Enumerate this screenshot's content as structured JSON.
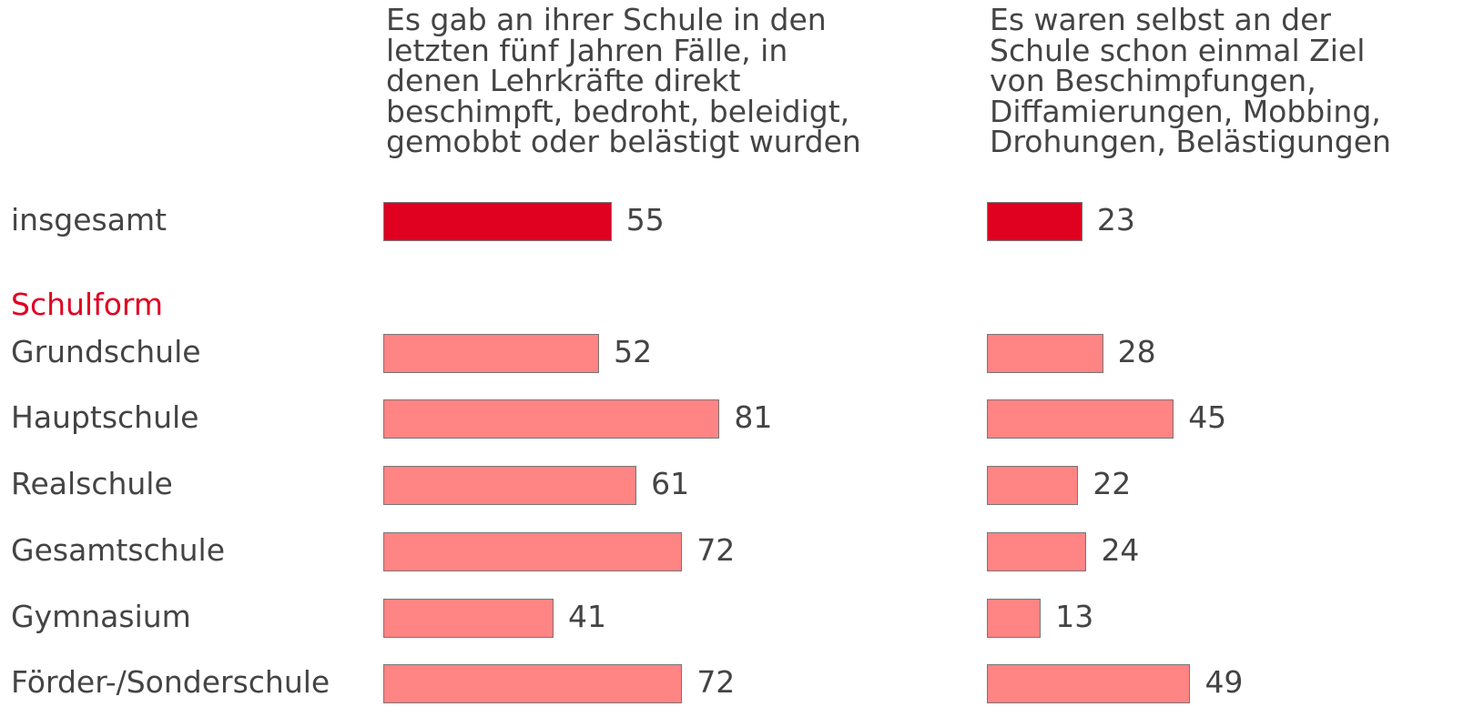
{
  "chart_data": {
    "type": "bar",
    "group_label": "Schulform",
    "categories": [
      "insgesamt",
      "Grundschule",
      "Hauptschule",
      "Realschule",
      "Gesamtschule",
      "Gymnasium",
      "Förder-/Sonderschule"
    ],
    "highlight_color": "#e00020",
    "color": "#ff8484",
    "group_color": "#e00020",
    "series": [
      {
        "name": "Es gab an ihrer Schule in den\nletzten fünf Jahren Fälle, in\ndenen Lehrkräfte direkt\nbeschimpft, bedroht, beleidigt,\ngemobbt oder belästigt wurden",
        "values": [
          55,
          52,
          81,
          61,
          72,
          41,
          72
        ]
      },
      {
        "name": "Es waren selbst an der\nSchule schon einmal Ziel\nvon Beschimpfungen,\nDiffamierungen, Mobbing,\nDrohungen, Belästigungen",
        "values": [
          23,
          28,
          45,
          22,
          24,
          13,
          49
        ]
      }
    ]
  }
}
